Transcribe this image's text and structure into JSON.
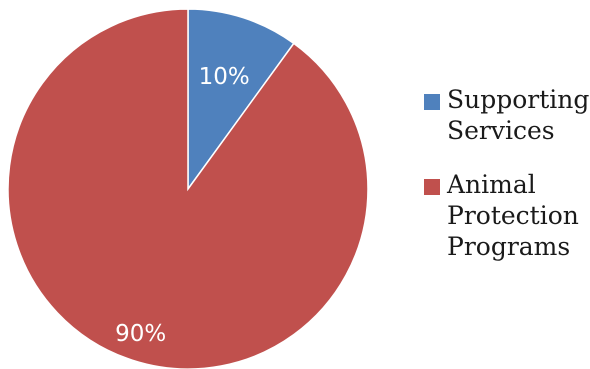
{
  "chart_data": {
    "type": "pie",
    "title": "",
    "start_angle_deg": 0,
    "direction": "clockwise",
    "slices": [
      {
        "label": "Supporting Services",
        "legend_lines": [
          "Supporting",
          "Services"
        ],
        "value": 10,
        "value_label": "10%",
        "color": "#4f81bd"
      },
      {
        "label": "Animal Protection Programs",
        "legend_lines": [
          "Animal",
          "Protection",
          "Programs"
        ],
        "value": 90,
        "value_label": "90%",
        "color": "#c0504d"
      }
    ],
    "legend_position": "right",
    "data_label_color": "#ffffff"
  }
}
